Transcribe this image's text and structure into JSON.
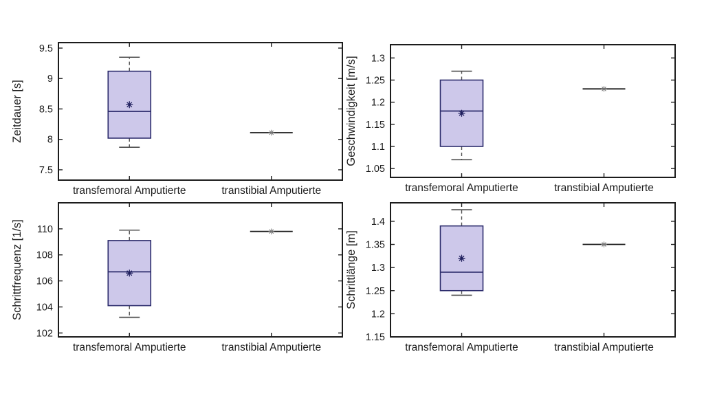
{
  "figure": {
    "background": "#ffffff",
    "description": "2x2 grid of boxplots comparing gait parameters of transfemoral vs transtibial amputees"
  },
  "colors": {
    "box_fill": "#cdc8ea",
    "box_edge": "#2b2b6b",
    "median": "#2b2b6b",
    "mean_marker": "#1f1f5e",
    "whisker": "#4f4f4f",
    "axis": "#1c1c1c",
    "text": "#1c1c1c",
    "single_line": "#1a1a1a",
    "single_marker": "#777777"
  },
  "chart_data": [
    {
      "id": "zeitdauer",
      "type": "boxplot",
      "ylabel": "Zeitdauer [s]",
      "ylim": [
        7.33,
        9.59
      ],
      "yticks": [
        7.5,
        8,
        8.5,
        9,
        9.5
      ],
      "grid": false,
      "categories": [
        "transfemoral Amputierte",
        "transtibial Amputierte"
      ],
      "series": [
        {
          "category": "transfemoral Amputierte",
          "whisker_low": 7.87,
          "q1": 8.02,
          "median": 8.46,
          "mean": 8.57,
          "q3": 9.12,
          "whisker_high": 9.35
        },
        {
          "category": "transtibial Amputierte",
          "value": 8.11
        }
      ]
    },
    {
      "id": "geschwindigkeit",
      "type": "boxplot",
      "ylabel": "Geschwindigkeit [m/s]",
      "ylim": [
        1.03,
        1.33
      ],
      "yticks": [
        1.05,
        1.1,
        1.15,
        1.2,
        1.25,
        1.3
      ],
      "grid": false,
      "categories": [
        "transfemoral Amputierte",
        "transtibial Amputierte"
      ],
      "series": [
        {
          "category": "transfemoral Amputierte",
          "whisker_low": 1.07,
          "q1": 1.1,
          "median": 1.18,
          "mean": 1.175,
          "q3": 1.25,
          "whisker_high": 1.27
        },
        {
          "category": "transtibial Amputierte",
          "value": 1.23
        }
      ]
    },
    {
      "id": "schrittfrequenz",
      "type": "boxplot",
      "ylabel": "Schrittfrequenz [1/s]",
      "ylim": [
        101.7,
        112
      ],
      "yticks": [
        102,
        104,
        106,
        108,
        110
      ],
      "grid": false,
      "categories": [
        "transfemoral Amputierte",
        "transtibial Amputierte"
      ],
      "series": [
        {
          "category": "transfemoral Amputierte",
          "whisker_low": 103.2,
          "q1": 104.1,
          "median": 106.7,
          "mean": 106.6,
          "q3": 109.1,
          "whisker_high": 109.9
        },
        {
          "category": "transtibial Amputierte",
          "value": 109.8
        }
      ]
    },
    {
      "id": "schrittlaenge",
      "type": "boxplot",
      "ylabel": "Schrittlänge [m]",
      "ylim": [
        1.15,
        1.44
      ],
      "yticks": [
        1.15,
        1.2,
        1.25,
        1.3,
        1.35,
        1.4
      ],
      "grid": false,
      "categories": [
        "transfemoral Amputierte",
        "transtibial Amputierte"
      ],
      "series": [
        {
          "category": "transfemoral Amputierte",
          "whisker_low": 1.24,
          "q1": 1.25,
          "median": 1.29,
          "mean": 1.32,
          "q3": 1.39,
          "whisker_high": 1.425
        },
        {
          "category": "transtibial Amputierte",
          "value": 1.35
        }
      ]
    }
  ]
}
